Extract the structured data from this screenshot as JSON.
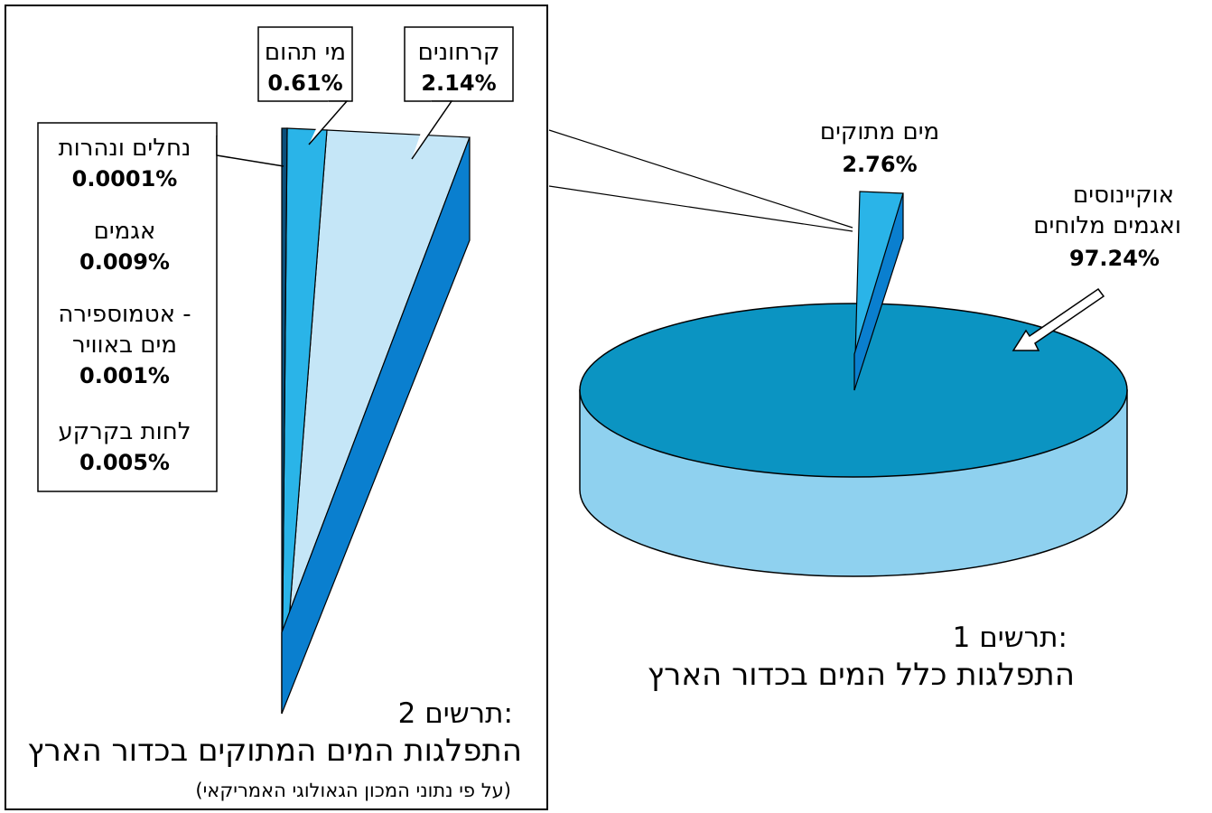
{
  "chart_data": [
    {
      "type": "pie",
      "title_line1": "תרשים 1:",
      "title_line2": "התפלגות כלל המים בכדור הארץ",
      "slices": [
        {
          "label_line1": "אוקיינוסים",
          "label_line2": "ואגמים מלוחים",
          "value": 97.24,
          "value_label": "97.24%",
          "color": "#0b94c2"
        },
        {
          "label_line1": "מים מתוקים",
          "label_line2": "",
          "value": 2.76,
          "value_label": "2.76%",
          "color": "#2ab4e8"
        }
      ],
      "style": "3d-exploded"
    },
    {
      "type": "bar",
      "title_line1": "תרשים 2:",
      "title_line2": "התפלגות המים המתוקים בכדור הארץ",
      "source": "(על פי נתוני המכון הגאולוגי האמריקאי)",
      "slices": [
        {
          "label": "קרחונים",
          "value": 2.14,
          "value_label": "2.14%",
          "color": "#c5e6f7"
        },
        {
          "label": "מי תהום",
          "value": 0.61,
          "value_label": "0.61%",
          "color": "#2ab4e8"
        },
        {
          "label": "נחלים ונהרות",
          "value": 0.0001,
          "value_label": "0.0001%",
          "color": "#0b4f7a"
        },
        {
          "label": "אגמים",
          "value": 0.009,
          "value_label": "0.009%",
          "color": "#0b4f7a"
        },
        {
          "label": "אטמוספירה - מים באוויר",
          "label_line1": "אטמוספירה -",
          "label_line2": "מים באוויר",
          "value": 0.001,
          "value_label": "0.001%",
          "color": "#0b4f7a"
        },
        {
          "label": "לחות בקרקע",
          "value": 0.005,
          "value_label": "0.005%",
          "color": "#0b4f7a"
        }
      ],
      "style": "3d-wedge"
    }
  ],
  "colors": {
    "ocean_top": "#0b94c2",
    "ocean_side": "#8fd1ef",
    "fresh_light": "#2ab4e8",
    "fresh_dark": "#0a7fcf",
    "glacier": "#c5e6f7",
    "wedge_side": "#0a7fcf"
  }
}
